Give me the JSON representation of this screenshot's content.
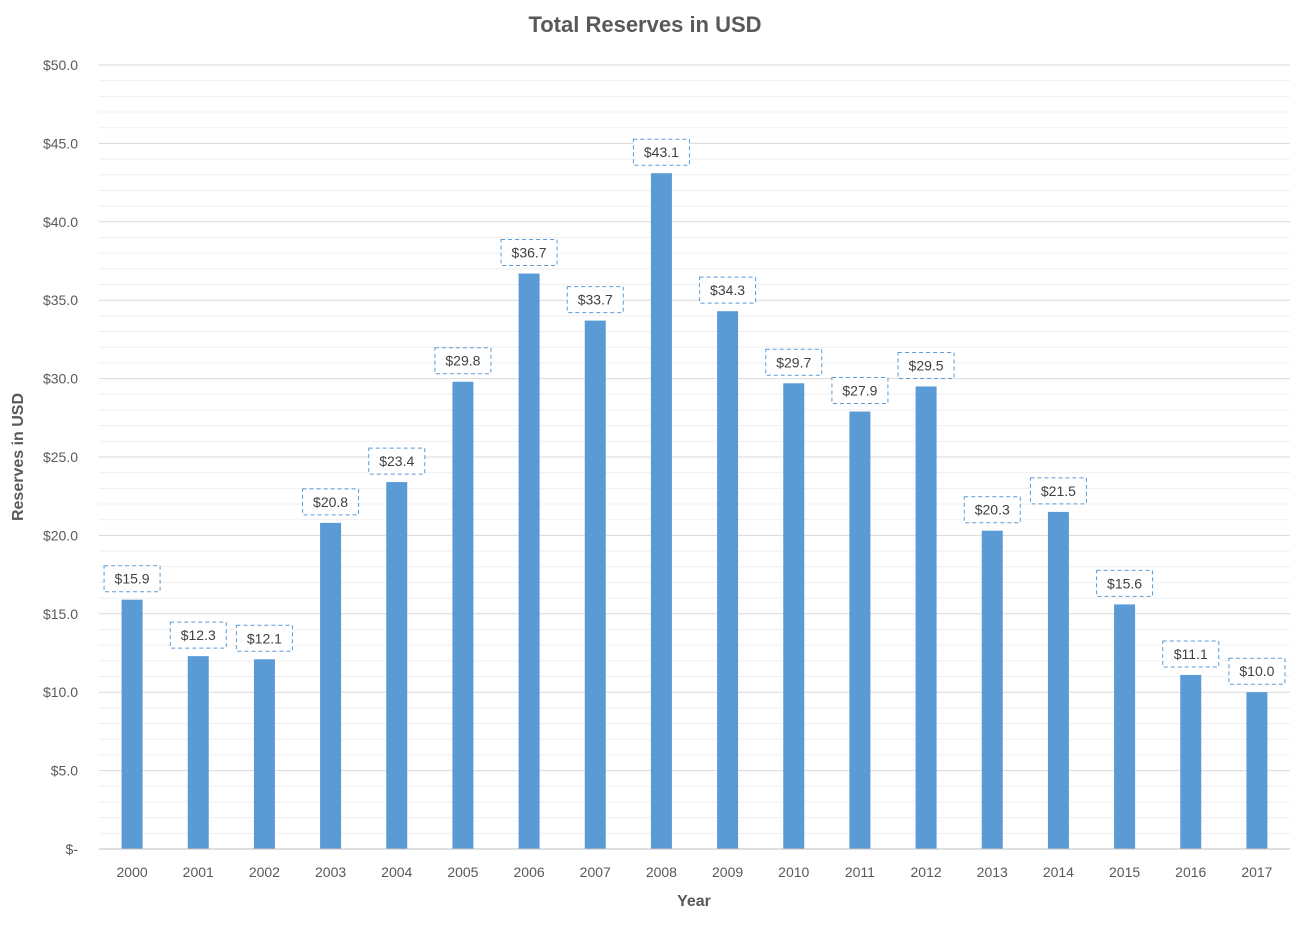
{
  "chart_data": {
    "type": "bar",
    "title": "Total Reserves in USD",
    "xlabel": "Year",
    "ylabel": "Reserves in USD",
    "categories": [
      "2000",
      "2001",
      "2002",
      "2003",
      "2004",
      "2005",
      "2006",
      "2007",
      "2008",
      "2009",
      "2010",
      "2011",
      "2012",
      "2013",
      "2014",
      "2015",
      "2016",
      "2017"
    ],
    "values": [
      15.9,
      12.3,
      12.1,
      20.8,
      23.4,
      29.8,
      36.7,
      33.7,
      43.1,
      34.3,
      29.7,
      27.9,
      29.5,
      20.3,
      21.5,
      15.6,
      11.1,
      10.0
    ],
    "data_labels": [
      "$15.9",
      "$12.3",
      "$12.1",
      "$20.8",
      "$23.4",
      "$29.8",
      "$36.7",
      "$33.7",
      "$43.1",
      "$34.3",
      "$29.7",
      "$27.9",
      "$29.5",
      "$20.3",
      "$21.5",
      "$15.6",
      "$11.1",
      "$10.0"
    ],
    "y_ticks": [
      0,
      5,
      10,
      15,
      20,
      25,
      30,
      35,
      40,
      45,
      50
    ],
    "y_tick_labels": [
      "$-",
      "$5.0",
      "$10.0",
      "$15.0",
      "$20.0",
      "$25.0",
      "$30.0",
      "$35.0",
      "$40.0",
      "$45.0",
      "$50.0"
    ],
    "ylim": [
      0,
      50
    ],
    "grid": true,
    "legend": "none",
    "colors": {
      "bar": "#5b9bd5",
      "grid_major": "#d9d9d9",
      "grid_minor": "#efefef",
      "label_border": "#5b9bd5",
      "text": "#595959"
    }
  }
}
